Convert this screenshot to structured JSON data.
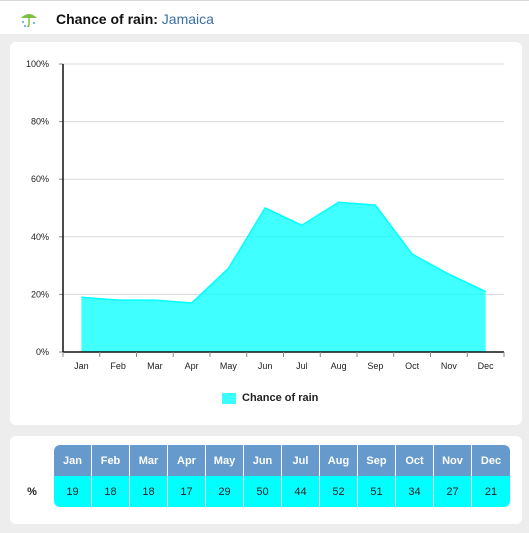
{
  "header": {
    "title_prefix": "Chance of rain:",
    "location": "Jamaica",
    "logo_icon": "umbrella-rain-icon"
  },
  "colors": {
    "area_fill": "#00ffff",
    "table_header": "#6699cc",
    "table_values": "#00ffff",
    "location_link": "#3a6ea5"
  },
  "chart_data": {
    "type": "area",
    "categories": [
      "Jan",
      "Feb",
      "Mar",
      "Apr",
      "May",
      "Jun",
      "Jul",
      "Aug",
      "Sep",
      "Oct",
      "Nov",
      "Dec"
    ],
    "series": [
      {
        "name": "Chance of rain",
        "values": [
          19,
          18,
          18,
          17,
          29,
          50,
          44,
          52,
          51,
          34,
          27,
          21
        ]
      }
    ],
    "y_ticks": [
      "0%",
      "20%",
      "40%",
      "60%",
      "80%",
      "100%"
    ],
    "ylim": [
      0,
      100
    ],
    "grid": true,
    "legend_position": "bottom-center"
  },
  "table": {
    "row_label": "%",
    "months": [
      "Jan",
      "Feb",
      "Mar",
      "Apr",
      "May",
      "Jun",
      "Jul",
      "Aug",
      "Sep",
      "Oct",
      "Nov",
      "Dec"
    ],
    "values": [
      "19",
      "18",
      "18",
      "17",
      "29",
      "50",
      "44",
      "52",
      "51",
      "34",
      "27",
      "21"
    ]
  }
}
